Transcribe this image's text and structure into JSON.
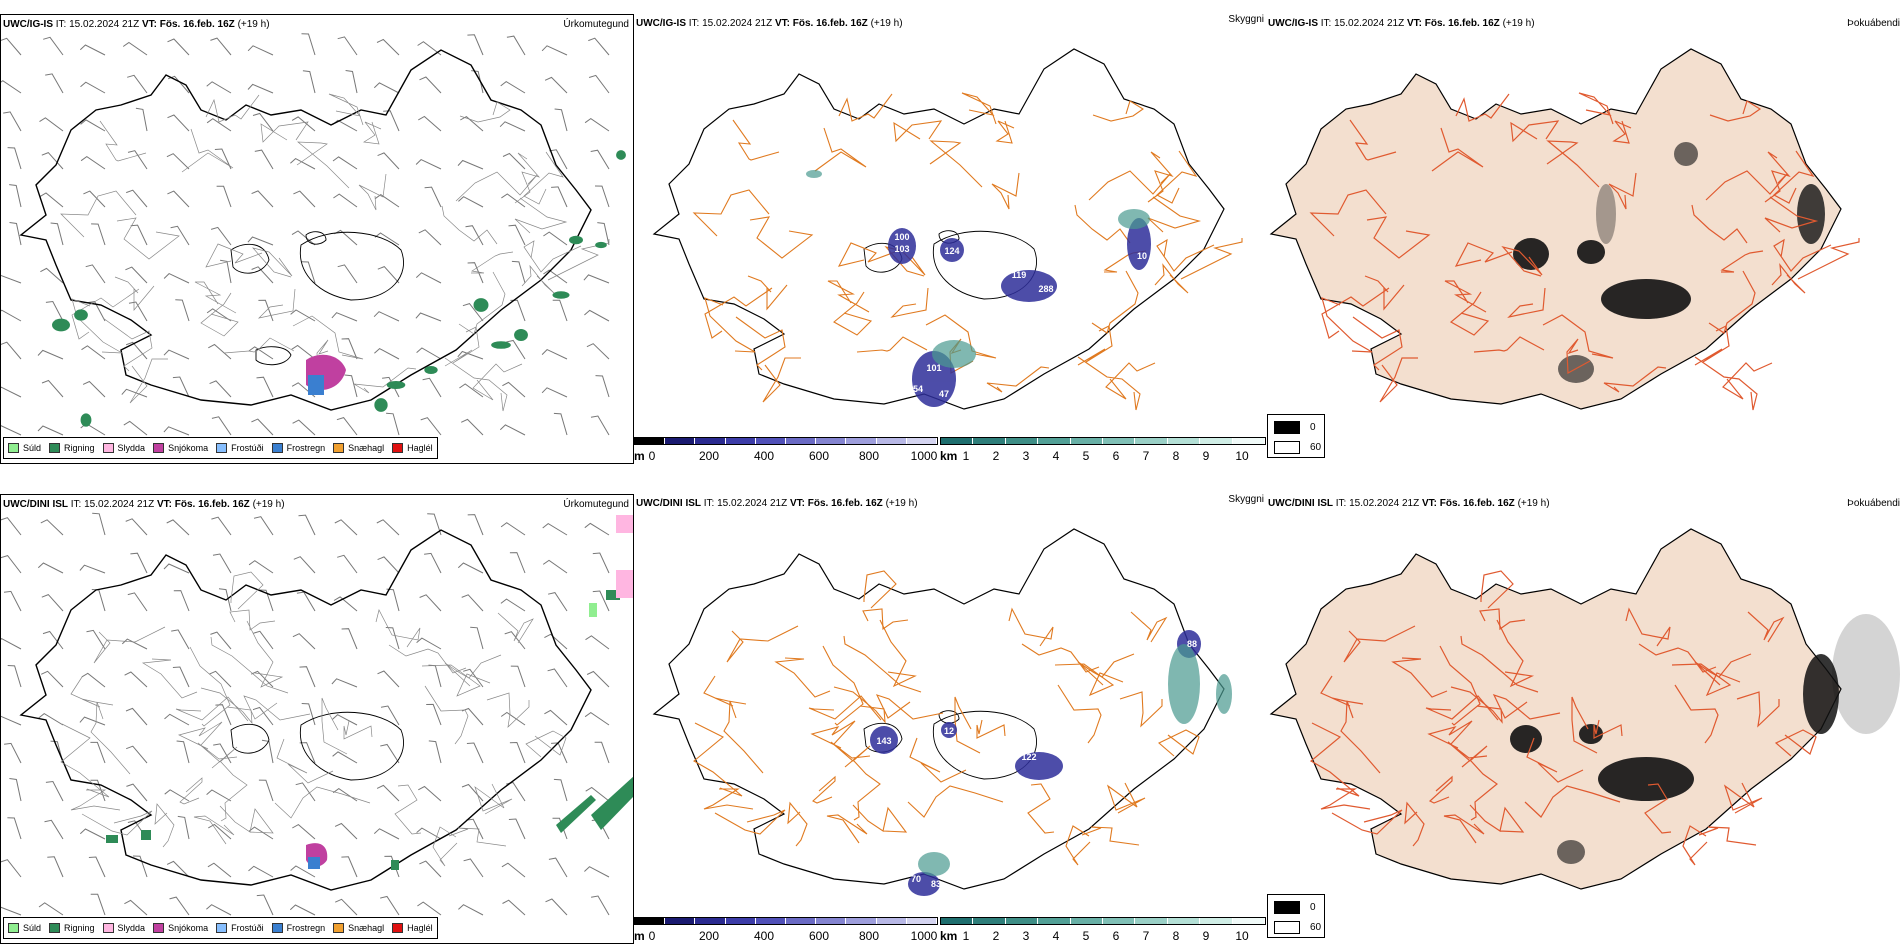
{
  "rows": [
    {
      "model": "UWC/IG-IS",
      "it_label": "IT:",
      "it": "15.02.2024 21Z",
      "vt_label": "VT:",
      "vt": "Fös. 16.feb. 16Z",
      "lead": "(+19 h)"
    },
    {
      "model": "UWC/DINI ISL",
      "it_label": "IT:",
      "it": "15.02.2024 21Z",
      "vt_label": "VT:",
      "vt": "Fös. 16.feb. 16Z",
      "lead": "(+19 h)"
    }
  ],
  "panels": {
    "precip_title": "Úrkomutegund",
    "vis_title": "Skyggni",
    "fog_title": "Þokuábendi"
  },
  "precip_legend": [
    {
      "label": "Súld",
      "color": "#90ee90"
    },
    {
      "label": "Rigning",
      "color": "#2e8b57"
    },
    {
      "label": "Slydda",
      "color": "#ffb6e1"
    },
    {
      "label": "Snjókoma",
      "color": "#c040a0"
    },
    {
      "label": "Frostúði",
      "color": "#87bfff"
    },
    {
      "label": "Frostregn",
      "color": "#3a7fd0"
    },
    {
      "label": "Snæhagl",
      "color": "#f0a030"
    },
    {
      "label": "Haglél",
      "color": "#e01010"
    }
  ],
  "cloud_base_scale": {
    "unit": "m",
    "ticks": [
      "0",
      "200",
      "400",
      "600",
      "800",
      "1000"
    ],
    "colors": [
      "#000000",
      "#1a1a70",
      "#2a2a90",
      "#3c3ca8",
      "#5050b8",
      "#6a6ac4",
      "#8484d0",
      "#9e9edc",
      "#b8b8e6",
      "#d4d4f0"
    ]
  },
  "visibility_scale": {
    "unit": "km",
    "ticks": [
      "1",
      "2",
      "3",
      "4",
      "5",
      "6",
      "7",
      "8",
      "9",
      "10"
    ],
    "colors": [
      "#1e6e6e",
      "#2e7e7a",
      "#3e8e86",
      "#52a096",
      "#68b0a6",
      "#80c0b6",
      "#9ad0c6",
      "#b4e0d6",
      "#d0eee6",
      "#f0faf8"
    ]
  },
  "fog_legend": [
    {
      "label": "0",
      "color": "#000000"
    },
    {
      "label": "60",
      "color": "#ffffff"
    }
  ],
  "vis_labels_top": [
    "100",
    "103",
    "124",
    "119",
    "288",
    "101",
    "47",
    "54",
    "10"
  ],
  "vis_labels_bottom": [
    "143",
    "122",
    "88",
    "70",
    "83",
    "12"
  ]
}
